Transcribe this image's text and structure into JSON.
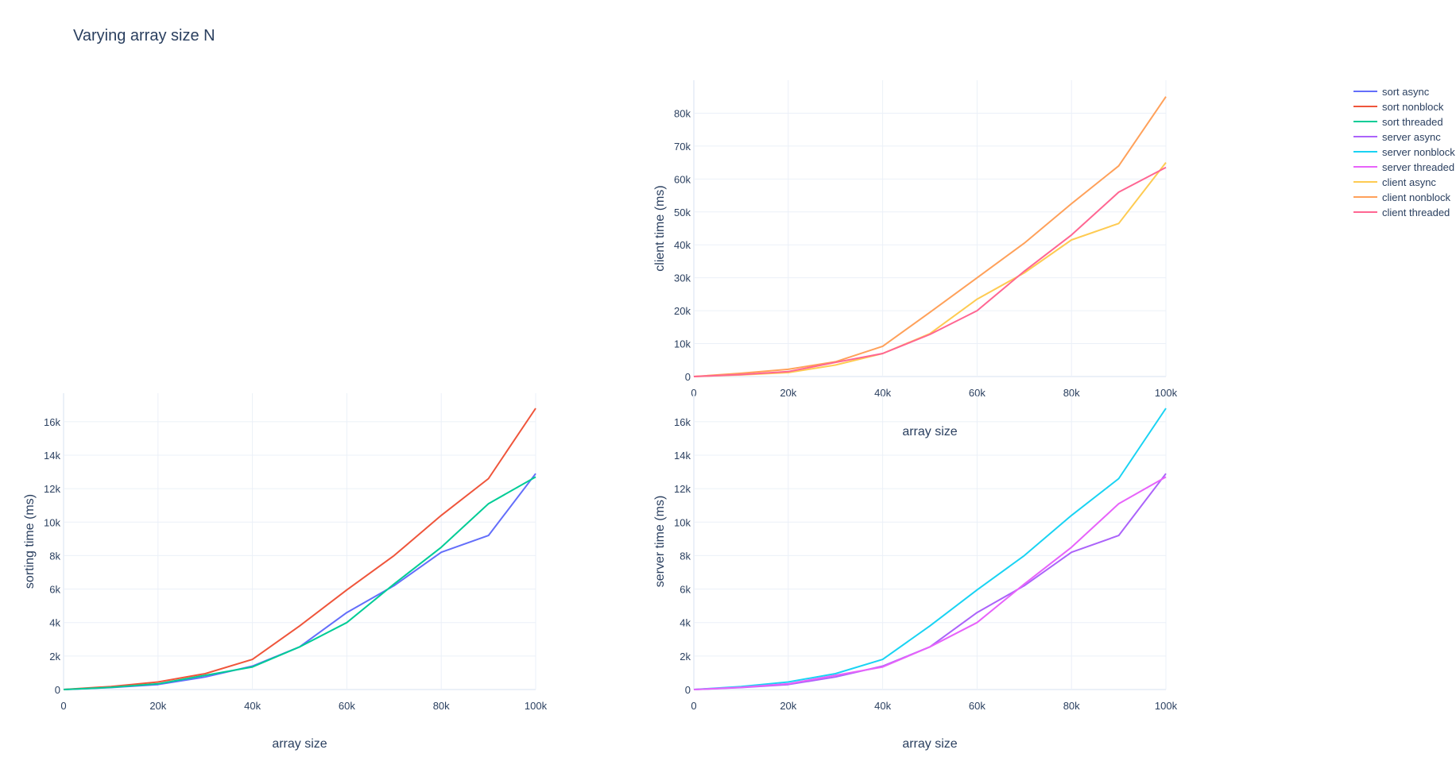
{
  "title": "Varying array size N",
  "colors": {
    "sort async": "#636efa",
    "sort nonblock": "#EF553B",
    "sort threaded": "#00cc96",
    "server async": "#ab63fa",
    "server nonblock": "#19d3f3",
    "server threaded": "#e763fa",
    "client async": "#fecb52",
    "client nonblock": "#ffa15a",
    "client threaded": "#ff6692"
  },
  "legend": {
    "placement": "top-right",
    "items": [
      "sort async",
      "sort nonblock",
      "sort threaded",
      "server async",
      "server nonblock",
      "server threaded",
      "client async",
      "client nonblock",
      "client threaded"
    ]
  },
  "chart_data": [
    {
      "id": "client",
      "type": "line",
      "xlabel": "array size",
      "ylabel": "client time (ms)",
      "xlim": [
        0,
        100000
      ],
      "ylim": [
        0,
        90000
      ],
      "xticks": [
        0,
        20000,
        40000,
        60000,
        80000,
        100000
      ],
      "xtick_labels": [
        "0",
        "20k",
        "40k",
        "60k",
        "80k",
        "100k"
      ],
      "yticks": [
        0,
        10000,
        20000,
        30000,
        40000,
        50000,
        60000,
        70000,
        80000
      ],
      "ytick_labels": [
        "0",
        "10k",
        "20k",
        "30k",
        "40k",
        "50k",
        "60k",
        "70k",
        "80k"
      ],
      "grid": true,
      "x": [
        0,
        10000,
        20000,
        30000,
        40000,
        50000,
        60000,
        70000,
        80000,
        90000,
        100000
      ],
      "series": [
        {
          "name": "client async",
          "values": [
            0,
            500,
            1200,
            3500,
            7000,
            13000,
            23500,
            31500,
            41500,
            46500,
            65000
          ]
        },
        {
          "name": "client nonblock",
          "values": [
            0,
            1000,
            2200,
            4500,
            9200,
            19500,
            30000,
            40500,
            52500,
            64000,
            85000
          ]
        },
        {
          "name": "client threaded",
          "values": [
            0,
            600,
            1500,
            4300,
            7000,
            12800,
            20000,
            32000,
            43000,
            56000,
            63500
          ]
        }
      ]
    },
    {
      "id": "sorting",
      "type": "line",
      "xlabel": "array size",
      "ylabel": "sorting time (ms)",
      "xlim": [
        0,
        100000
      ],
      "ylim": [
        0,
        17700
      ],
      "xticks": [
        0,
        20000,
        40000,
        60000,
        80000,
        100000
      ],
      "xtick_labels": [
        "0",
        "20k",
        "40k",
        "60k",
        "80k",
        "100k"
      ],
      "yticks": [
        0,
        2000,
        4000,
        6000,
        8000,
        10000,
        12000,
        14000,
        16000
      ],
      "ytick_labels": [
        "0",
        "2k",
        "4k",
        "6k",
        "8k",
        "10k",
        "12k",
        "14k",
        "16k"
      ],
      "grid": true,
      "x": [
        0,
        10000,
        20000,
        30000,
        40000,
        50000,
        60000,
        70000,
        80000,
        90000,
        100000
      ],
      "series": [
        {
          "name": "sort async",
          "values": [
            0,
            120,
            300,
            750,
            1400,
            2550,
            4600,
            6200,
            8200,
            9200,
            12900
          ]
        },
        {
          "name": "sort nonblock",
          "values": [
            0,
            180,
            450,
            950,
            1800,
            3800,
            5950,
            8000,
            10400,
            12600,
            16800
          ]
        },
        {
          "name": "sort threaded",
          "values": [
            0,
            130,
            340,
            850,
            1350,
            2550,
            4000,
            6300,
            8500,
            11100,
            12700
          ]
        }
      ]
    },
    {
      "id": "server",
      "type": "line",
      "xlabel": "array size",
      "ylabel": "server time (ms)",
      "xlim": [
        0,
        100000
      ],
      "ylim": [
        0,
        17700
      ],
      "xticks": [
        0,
        20000,
        40000,
        60000,
        80000,
        100000
      ],
      "xtick_labels": [
        "0",
        "20k",
        "40k",
        "60k",
        "80k",
        "100k"
      ],
      "yticks": [
        0,
        2000,
        4000,
        6000,
        8000,
        10000,
        12000,
        14000,
        16000
      ],
      "ytick_labels": [
        "0",
        "2k",
        "4k",
        "6k",
        "8k",
        "10k",
        "12k",
        "14k",
        "16k"
      ],
      "grid": true,
      "x": [
        0,
        10000,
        20000,
        30000,
        40000,
        50000,
        60000,
        70000,
        80000,
        90000,
        100000
      ],
      "series": [
        {
          "name": "server async",
          "values": [
            0,
            120,
            300,
            750,
            1400,
            2550,
            4600,
            6200,
            8200,
            9200,
            12900
          ]
        },
        {
          "name": "server nonblock",
          "values": [
            0,
            180,
            450,
            950,
            1800,
            3800,
            5950,
            8000,
            10400,
            12600,
            16800
          ]
        },
        {
          "name": "server threaded",
          "values": [
            0,
            130,
            340,
            850,
            1350,
            2550,
            4000,
            6300,
            8500,
            11100,
            12700
          ]
        }
      ]
    }
  ]
}
